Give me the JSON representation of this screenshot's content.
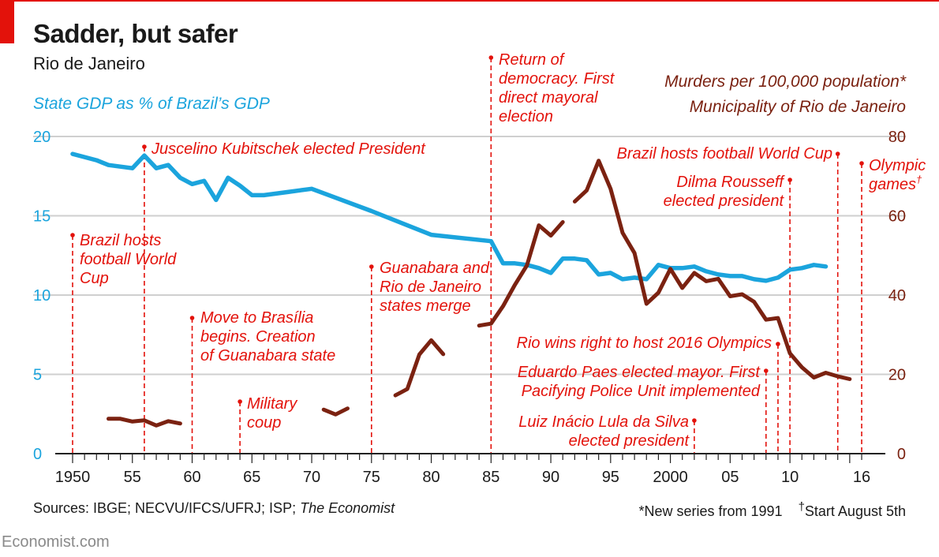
{
  "title": "Sadder, but safer",
  "subtitle": "Rio de Janeiro",
  "sources": "Sources: IBGE; NECVU/IFCS/UFRJ; ISP; ",
  "sources_italic": "The Economist",
  "note_new_series": "*New series from 1991",
  "note_start_dagger": "†",
  "note_start": "Start August 5th",
  "credit": "Economist.com",
  "colors": {
    "gdp": "#1ba4dd",
    "murders": "#7b2211",
    "annotation": "#e3120b",
    "grid": "#cfcfcf"
  },
  "chart_data": {
    "type": "line",
    "title": "Sadder, but safer",
    "subtitle": "Rio de Janeiro",
    "left_axis": {
      "label": "State GDP as % of Brazil’s GDP",
      "range": [
        0,
        20
      ],
      "ticks": [
        "0",
        "5",
        "10",
        "15",
        "20"
      ]
    },
    "right_axis": {
      "label_line1": "Murders per 100,000 population*",
      "label_line2": "Municipality of Rio de Janeiro",
      "range": [
        0,
        80
      ],
      "ticks": [
        "0",
        "20",
        "40",
        "60",
        "80"
      ]
    },
    "x_axis": {
      "range": [
        1950,
        2016
      ],
      "tick_labels": [
        {
          "year": 1950,
          "label": "1950"
        },
        {
          "year": 1955,
          "label": "55"
        },
        {
          "year": 1960,
          "label": "60"
        },
        {
          "year": 1965,
          "label": "65"
        },
        {
          "year": 1970,
          "label": "70"
        },
        {
          "year": 1975,
          "label": "75"
        },
        {
          "year": 1980,
          "label": "80"
        },
        {
          "year": 1985,
          "label": "85"
        },
        {
          "year": 1990,
          "label": "90"
        },
        {
          "year": 1995,
          "label": "95"
        },
        {
          "year": 2000,
          "label": "2000"
        },
        {
          "year": 2005,
          "label": "05"
        },
        {
          "year": 2010,
          "label": "10"
        },
        {
          "year": 2016,
          "label": "16"
        }
      ]
    },
    "series": [
      {
        "name": "State GDP as % of Brazil’s GDP",
        "axis": "left",
        "points": [
          [
            1950,
            18.9
          ],
          [
            1951,
            18.7
          ],
          [
            1952,
            18.5
          ],
          [
            1953,
            18.2
          ],
          [
            1954,
            18.1
          ],
          [
            1955,
            18.0
          ],
          [
            1956,
            18.8
          ],
          [
            1957,
            18.0
          ],
          [
            1958,
            18.2
          ],
          [
            1959,
            17.4
          ],
          [
            1960,
            17.0
          ],
          [
            1961,
            17.2
          ],
          [
            1962,
            16.0
          ],
          [
            1963,
            17.4
          ],
          [
            1964,
            16.9
          ],
          [
            1965,
            16.3
          ],
          [
            1966,
            16.3
          ],
          [
            1967,
            16.4
          ],
          [
            1968,
            16.5
          ],
          [
            1969,
            16.6
          ],
          [
            1970,
            16.7
          ],
          [
            1975,
            15.3
          ],
          [
            1980,
            13.8
          ],
          [
            1985,
            13.4
          ],
          [
            1986,
            12.0
          ],
          [
            1987,
            12.0
          ],
          [
            1988,
            11.9
          ],
          [
            1989,
            11.7
          ],
          [
            1990,
            11.4
          ],
          [
            1991,
            12.3
          ],
          [
            1992,
            12.3
          ],
          [
            1993,
            12.2
          ],
          [
            1994,
            11.3
          ],
          [
            1995,
            11.4
          ],
          [
            1996,
            11.0
          ],
          [
            1997,
            11.1
          ],
          [
            1998,
            11.0
          ],
          [
            1999,
            11.9
          ],
          [
            2000,
            11.7
          ],
          [
            2001,
            11.7
          ],
          [
            2002,
            11.8
          ],
          [
            2003,
            11.5
          ],
          [
            2004,
            11.3
          ],
          [
            2005,
            11.2
          ],
          [
            2006,
            11.2
          ],
          [
            2007,
            11.0
          ],
          [
            2008,
            10.9
          ],
          [
            2009,
            11.1
          ],
          [
            2010,
            11.6
          ],
          [
            2011,
            11.7
          ],
          [
            2012,
            11.9
          ],
          [
            2013,
            11.8
          ]
        ]
      },
      {
        "name": "Murders per 100,000 population",
        "axis": "right",
        "segments": [
          [
            [
              1953,
              8.8
            ],
            [
              1954,
              8.8
            ],
            [
              1955,
              8.1
            ],
            [
              1956,
              8.4
            ],
            [
              1957,
              7.1
            ],
            [
              1958,
              8.2
            ],
            [
              1959,
              7.6
            ]
          ],
          [
            [
              1971,
              11.1
            ],
            [
              1972,
              9.9
            ],
            [
              1973,
              11.4
            ]
          ],
          [
            [
              1977,
              14.7
            ],
            [
              1978,
              16.3
            ],
            [
              1979,
              25.0
            ],
            [
              1980,
              28.6
            ],
            [
              1981,
              25.1
            ]
          ],
          [
            [
              1984,
              32.3
            ],
            [
              1985,
              32.8
            ],
            [
              1986,
              37.2
            ],
            [
              1987,
              42.6
            ],
            [
              1988,
              47.5
            ],
            [
              1989,
              57.6
            ],
            [
              1990,
              55.0
            ],
            [
              1991,
              58.4
            ]
          ],
          [
            [
              1992,
              63.6
            ],
            [
              1993,
              66.4
            ],
            [
              1994,
              73.9
            ],
            [
              1995,
              66.8
            ],
            [
              1996,
              55.7
            ],
            [
              1997,
              50.6
            ],
            [
              1998,
              37.8
            ],
            [
              1999,
              40.6
            ],
            [
              2000,
              46.6
            ],
            [
              2001,
              41.8
            ],
            [
              2002,
              45.6
            ],
            [
              2003,
              43.5
            ],
            [
              2004,
              44.1
            ],
            [
              2005,
              39.7
            ],
            [
              2006,
              40.2
            ],
            [
              2007,
              38.3
            ],
            [
              2008,
              33.8
            ],
            [
              2009,
              34.2
            ],
            [
              2010,
              25.3
            ],
            [
              2011,
              21.8
            ],
            [
              2012,
              19.2
            ],
            [
              2013,
              20.4
            ],
            [
              2014,
              19.5
            ],
            [
              2015,
              18.8
            ]
          ]
        ]
      }
    ],
    "annotations": [
      {
        "year": 1950,
        "lines": [
          "Brazil hosts",
          "football World",
          "Cup"
        ]
      },
      {
        "year": 1956,
        "lines": [
          "Juscelino Kubitschek elected President"
        ]
      },
      {
        "year": 1960,
        "lines": [
          "Move to Brasília",
          "begins. Creation",
          "of Guanabara state"
        ]
      },
      {
        "year": 1964,
        "lines": [
          "Military",
          "coup"
        ]
      },
      {
        "year": 1975,
        "lines": [
          "Guanabara and",
          "Rio de Janeiro",
          "states merge"
        ]
      },
      {
        "year": 1985,
        "lines": [
          "Return of",
          "democracy. First",
          "direct mayoral",
          "election"
        ]
      },
      {
        "year": 2002,
        "lines": [
          "Luiz Inácio Lula da Silva",
          "elected president"
        ]
      },
      {
        "year": 2008,
        "lines": [
          "Eduardo Paes elected mayor. First",
          "Pacifying Police Unit implemented"
        ]
      },
      {
        "year": 2009,
        "lines": [
          "Rio wins right to host 2016 Olympics"
        ]
      },
      {
        "year": 2010,
        "lines": [
          "Dilma Rousseff",
          "elected president"
        ]
      },
      {
        "year": 2014,
        "lines": [
          "Brazil hosts football World Cup"
        ]
      },
      {
        "year": 2016,
        "lines": [
          "Olympic",
          "games"
        ],
        "mark": "†"
      }
    ]
  }
}
